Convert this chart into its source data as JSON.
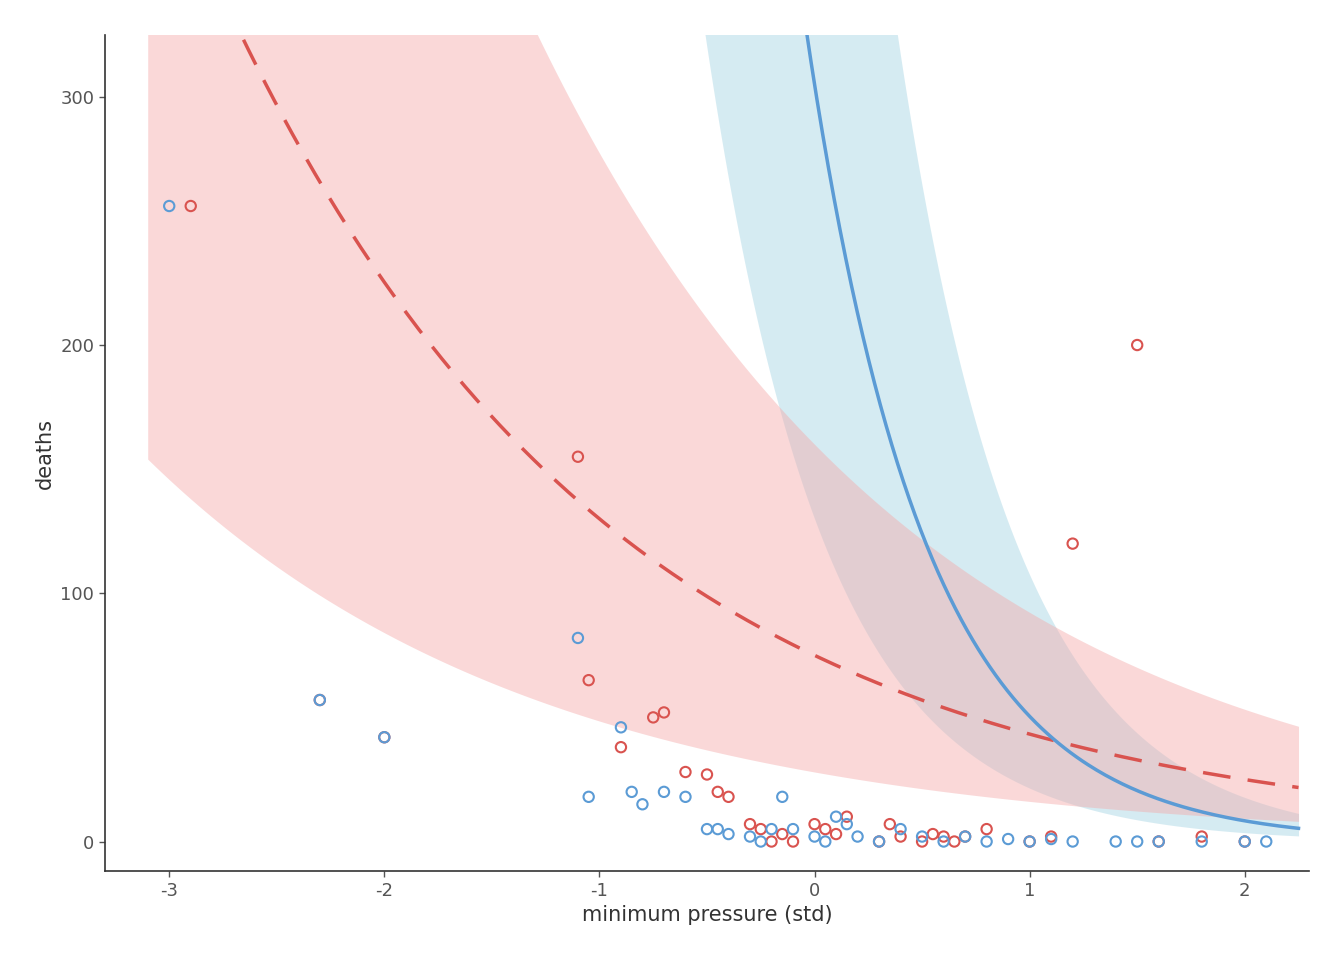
{
  "title": "",
  "xlabel": "minimum pressure (std)",
  "ylabel": "deaths",
  "xlim": [
    -3.3,
    2.3
  ],
  "ylim": [
    -12,
    325
  ],
  "xticks": [
    -3,
    -2,
    -1,
    0,
    1,
    2
  ],
  "yticks": [
    0,
    100,
    200,
    300
  ],
  "blue_color": "#5B9BD5",
  "blue_fill_color": "#ADD8E6",
  "pink_color": "#D9534F",
  "pink_fill_color": "#F4AAAA",
  "blue_alpha": 0.5,
  "pink_alpha": 0.45,
  "bg_color": "#FFFFFF",
  "blue_points": [
    [
      -3.0,
      256
    ],
    [
      -2.3,
      57
    ],
    [
      -2.0,
      42
    ],
    [
      -1.1,
      82
    ],
    [
      -1.05,
      18
    ],
    [
      -0.9,
      46
    ],
    [
      -0.85,
      20
    ],
    [
      -0.8,
      15
    ],
    [
      -0.7,
      20
    ],
    [
      -0.6,
      18
    ],
    [
      -0.5,
      5
    ],
    [
      -0.45,
      5
    ],
    [
      -0.4,
      3
    ],
    [
      -0.3,
      2
    ],
    [
      -0.25,
      0
    ],
    [
      -0.2,
      5
    ],
    [
      -0.15,
      18
    ],
    [
      -0.1,
      5
    ],
    [
      0.0,
      2
    ],
    [
      0.05,
      0
    ],
    [
      0.1,
      10
    ],
    [
      0.15,
      7
    ],
    [
      0.2,
      2
    ],
    [
      0.3,
      0
    ],
    [
      0.4,
      5
    ],
    [
      0.5,
      2
    ],
    [
      0.6,
      0
    ],
    [
      0.7,
      2
    ],
    [
      0.8,
      0
    ],
    [
      0.9,
      1
    ],
    [
      1.0,
      0
    ],
    [
      1.1,
      1
    ],
    [
      1.2,
      0
    ],
    [
      1.4,
      0
    ],
    [
      1.5,
      0
    ],
    [
      1.6,
      0
    ],
    [
      1.8,
      0
    ],
    [
      2.0,
      0
    ],
    [
      2.1,
      0
    ]
  ],
  "pink_points": [
    [
      -2.9,
      256
    ],
    [
      -2.3,
      57
    ],
    [
      -2.0,
      42
    ],
    [
      -1.1,
      155
    ],
    [
      -1.05,
      65
    ],
    [
      -0.9,
      38
    ],
    [
      -0.75,
      50
    ],
    [
      -0.7,
      52
    ],
    [
      -0.6,
      28
    ],
    [
      -0.5,
      27
    ],
    [
      -0.45,
      20
    ],
    [
      -0.4,
      18
    ],
    [
      -0.3,
      7
    ],
    [
      -0.25,
      5
    ],
    [
      -0.2,
      0
    ],
    [
      -0.15,
      3
    ],
    [
      -0.1,
      0
    ],
    [
      0.0,
      7
    ],
    [
      0.05,
      5
    ],
    [
      0.1,
      3
    ],
    [
      0.15,
      10
    ],
    [
      0.3,
      0
    ],
    [
      0.35,
      7
    ],
    [
      0.4,
      2
    ],
    [
      0.5,
      0
    ],
    [
      0.55,
      3
    ],
    [
      0.6,
      2
    ],
    [
      0.65,
      0
    ],
    [
      0.7,
      2
    ],
    [
      0.8,
      5
    ],
    [
      1.0,
      0
    ],
    [
      1.1,
      2
    ],
    [
      1.2,
      120
    ],
    [
      1.5,
      200
    ],
    [
      1.6,
      0
    ],
    [
      1.8,
      2
    ],
    [
      2.0,
      0
    ]
  ],
  "curve_x_min": -3.1,
  "curve_x_max": 2.25,
  "n_curve_points": 400,
  "blue_curve_a": 305,
  "blue_curve_b": 1.8,
  "blue_ci_upper_a": 650,
  "blue_ci_upper_b": 1.8,
  "blue_ci_lower_a": 130,
  "blue_ci_lower_b": 1.8,
  "pink_curve_a": 75,
  "pink_curve_b": 0.55,
  "pink_ci_upper_a": 160,
  "pink_ci_upper_b": 0.55,
  "pink_ci_lower_a": 28,
  "pink_ci_lower_b": 0.55,
  "font_family": "DejaVu Sans",
  "axis_label_fontsize": 15,
  "tick_fontsize": 13,
  "tick_color": "#555555",
  "axis_color": "#333333"
}
